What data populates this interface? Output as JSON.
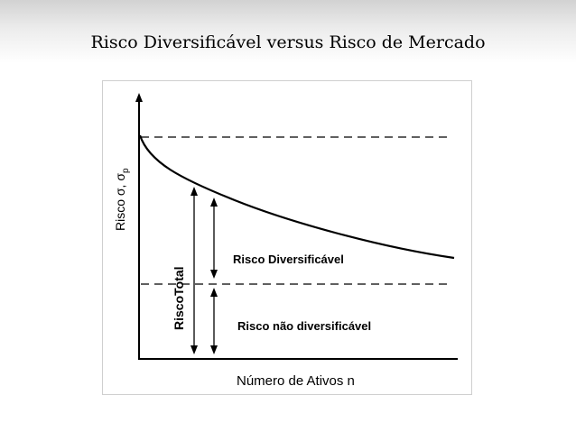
{
  "slide": {
    "title": "Risco Diversificável versus Risco de Mercado"
  },
  "diagram": {
    "y_axis_label": "Risco σ, σ",
    "y_axis_subscript": "p",
    "x_axis_label": "Número de Ativos n",
    "total_risk_label_part1": "Risco",
    "total_risk_label_part2": "Total",
    "diversifiable_label": "Risco Diversificável",
    "non_diversifiable_label": "Risco não diversificável"
  }
}
